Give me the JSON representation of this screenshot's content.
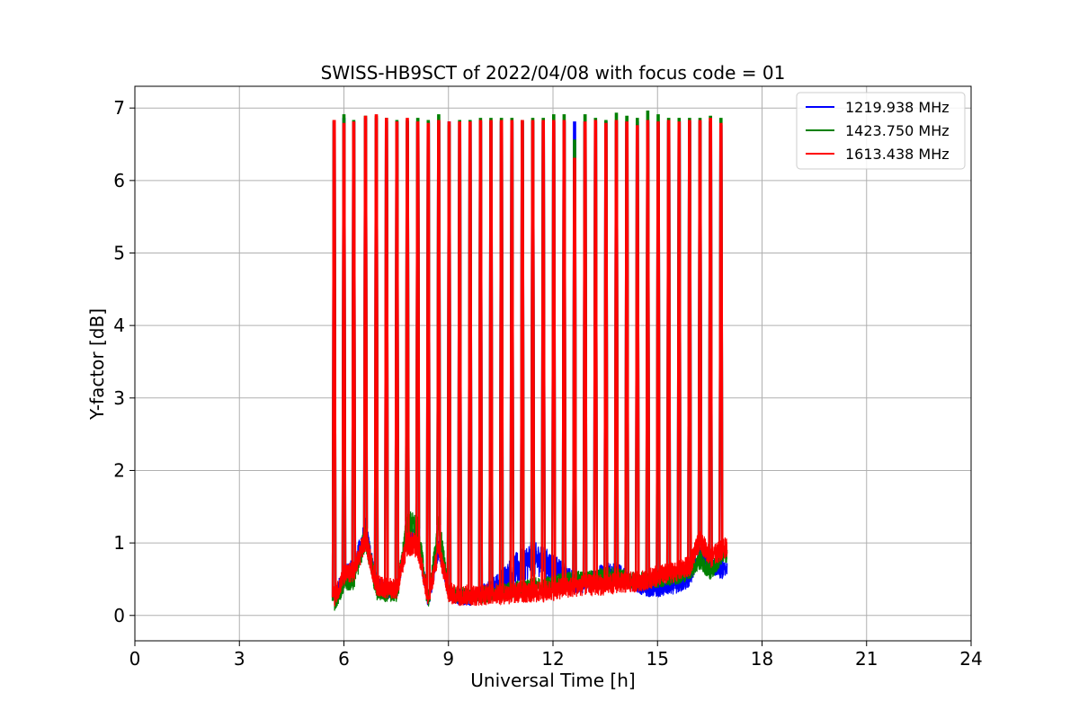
{
  "chart_data": {
    "type": "line",
    "title": "SWISS-HB9SCT of 2022/04/08 with focus code = 01",
    "xlabel": "Universal Time [h]",
    "ylabel": "Y-factor [dB]",
    "xlim": [
      0,
      24
    ],
    "ylim": [
      -0.35,
      7.3
    ],
    "xticks": [
      0,
      3,
      6,
      9,
      12,
      15,
      18,
      21,
      24
    ],
    "yticks": [
      0,
      1,
      2,
      3,
      4,
      5,
      6,
      7
    ],
    "grid": true,
    "legend_position": "top-right",
    "calibration_spike_times_h": [
      5.72,
      6.0,
      6.28,
      6.62,
      6.93,
      7.22,
      7.52,
      7.82,
      8.12,
      8.42,
      8.72,
      9.02,
      9.32,
      9.62,
      9.92,
      10.22,
      10.52,
      10.82,
      11.12,
      11.42,
      11.72,
      12.02,
      12.32,
      12.62,
      12.92,
      13.22,
      13.52,
      13.82,
      14.12,
      14.42,
      14.72,
      15.02,
      15.32,
      15.62,
      15.92,
      16.22,
      16.52,
      16.82
    ],
    "series": [
      {
        "name": "1219.938 MHz",
        "color": "#0000ff",
        "spike_peaks": [
          6.8,
          6.85,
          6.8,
          6.85,
          6.85,
          6.8,
          6.8,
          6.8,
          6.8,
          6.8,
          6.8,
          6.8,
          6.8,
          6.8,
          6.8,
          6.8,
          6.8,
          6.8,
          6.8,
          6.8,
          6.8,
          6.8,
          6.8,
          6.8,
          6.8,
          6.8,
          6.8,
          6.8,
          6.8,
          6.8,
          6.8,
          6.8,
          6.8,
          6.8,
          6.8,
          6.8,
          6.8,
          6.75
        ],
        "baseline": {
          "x": [
            5.72,
            6.0,
            6.28,
            6.62,
            6.93,
            7.22,
            7.52,
            7.82,
            8.12,
            8.42,
            8.72,
            9.02,
            9.32,
            9.62,
            9.92,
            10.22,
            10.52,
            10.82,
            11.12,
            11.42,
            11.72,
            12.02,
            12.32,
            12.62,
            12.92,
            13.22,
            13.52,
            13.82,
            14.12,
            14.42,
            14.72,
            15.02,
            15.32,
            15.62,
            15.92,
            16.22,
            16.52,
            16.82,
            17.0
          ],
          "y": [
            0.25,
            0.55,
            0.65,
            1.2,
            0.45,
            0.35,
            0.35,
            1.15,
            1.0,
            0.2,
            0.95,
            0.3,
            0.25,
            0.25,
            0.3,
            0.35,
            0.45,
            0.6,
            0.7,
            0.78,
            0.75,
            0.65,
            0.55,
            0.45,
            0.45,
            0.5,
            0.6,
            0.6,
            0.5,
            0.4,
            0.35,
            0.35,
            0.38,
            0.42,
            0.5,
            0.85,
            0.7,
            0.6,
            0.65
          ],
          "noise": [
            0.12,
            0.12,
            0.15,
            0.15,
            0.12,
            0.12,
            0.12,
            0.15,
            0.15,
            0.12,
            0.15,
            0.1,
            0.12,
            0.12,
            0.12,
            0.15,
            0.2,
            0.22,
            0.25,
            0.25,
            0.22,
            0.2,
            0.18,
            0.15,
            0.15,
            0.15,
            0.15,
            0.15,
            0.12,
            0.1,
            0.1,
            0.1,
            0.1,
            0.12,
            0.12,
            0.12,
            0.1,
            0.12,
            0.12
          ]
        }
      },
      {
        "name": "1423.750 MHz",
        "color": "#008000",
        "spike_peaks": [
          6.82,
          6.9,
          6.82,
          6.88,
          6.88,
          6.85,
          6.82,
          6.82,
          6.85,
          6.82,
          6.9,
          6.75,
          6.82,
          6.82,
          6.85,
          6.85,
          6.85,
          6.85,
          6.82,
          6.85,
          6.85,
          6.9,
          6.9,
          6.55,
          6.9,
          6.85,
          6.82,
          6.92,
          6.88,
          6.85,
          6.95,
          6.9,
          6.85,
          6.85,
          6.85,
          6.85,
          6.88,
          6.85
        ],
        "baseline": {
          "x": [
            5.72,
            6.0,
            6.28,
            6.62,
            6.93,
            7.22,
            7.52,
            7.82,
            8.12,
            8.42,
            8.72,
            9.02,
            9.32,
            9.62,
            9.92,
            10.22,
            10.52,
            10.82,
            11.12,
            11.42,
            11.72,
            12.02,
            12.32,
            12.62,
            12.92,
            13.22,
            13.52,
            13.82,
            14.12,
            14.42,
            14.72,
            15.02,
            15.32,
            15.62,
            15.92,
            16.22,
            16.52,
            16.82,
            17.0
          ],
          "y": [
            0.2,
            0.45,
            0.5,
            1.1,
            0.35,
            0.3,
            0.3,
            1.3,
            1.2,
            0.2,
            1.25,
            0.3,
            0.28,
            0.28,
            0.28,
            0.3,
            0.32,
            0.35,
            0.38,
            0.4,
            0.42,
            0.45,
            0.48,
            0.5,
            0.5,
            0.52,
            0.55,
            0.55,
            0.5,
            0.48,
            0.48,
            0.5,
            0.52,
            0.55,
            0.6,
            0.75,
            0.6,
            0.8,
            0.85
          ],
          "noise": [
            0.15,
            0.15,
            0.15,
            0.2,
            0.15,
            0.12,
            0.12,
            0.18,
            0.18,
            0.12,
            0.18,
            0.12,
            0.12,
            0.12,
            0.12,
            0.12,
            0.12,
            0.12,
            0.12,
            0.12,
            0.12,
            0.12,
            0.12,
            0.12,
            0.12,
            0.12,
            0.12,
            0.12,
            0.12,
            0.12,
            0.12,
            0.12,
            0.12,
            0.12,
            0.12,
            0.12,
            0.12,
            0.12,
            0.12
          ]
        }
      },
      {
        "name": "1613.438 MHz",
        "color": "#ff0000",
        "spike_peaks": [
          6.82,
          6.78,
          6.8,
          6.88,
          6.9,
          6.85,
          6.8,
          6.85,
          6.8,
          6.78,
          6.82,
          6.8,
          6.8,
          6.8,
          6.82,
          6.82,
          6.82,
          6.82,
          6.82,
          6.82,
          6.82,
          6.82,
          6.82,
          6.3,
          6.8,
          6.82,
          6.78,
          6.82,
          6.8,
          6.75,
          6.82,
          6.8,
          6.82,
          6.8,
          6.82,
          6.82,
          6.85,
          6.78
        ],
        "baseline": {
          "x": [
            5.72,
            6.0,
            6.28,
            6.62,
            6.93,
            7.22,
            7.52,
            7.82,
            8.12,
            8.42,
            8.72,
            9.02,
            9.32,
            9.62,
            9.92,
            10.22,
            10.52,
            10.82,
            11.12,
            11.42,
            11.72,
            12.02,
            12.32,
            12.62,
            12.92,
            13.22,
            13.52,
            13.82,
            14.12,
            14.42,
            14.72,
            15.02,
            15.32,
            15.62,
            15.92,
            16.22,
            16.52,
            16.82,
            17.0
          ],
          "y": [
            0.25,
            0.55,
            0.6,
            1.05,
            0.42,
            0.38,
            0.38,
            1.0,
            0.95,
            0.22,
            0.92,
            0.3,
            0.28,
            0.28,
            0.28,
            0.3,
            0.3,
            0.3,
            0.32,
            0.32,
            0.33,
            0.35,
            0.38,
            0.4,
            0.42,
            0.42,
            0.42,
            0.45,
            0.45,
            0.47,
            0.5,
            0.55,
            0.58,
            0.62,
            0.68,
            1.05,
            0.8,
            0.9,
            0.95
          ],
          "noise": [
            0.15,
            0.15,
            0.15,
            0.18,
            0.15,
            0.15,
            0.15,
            0.18,
            0.18,
            0.12,
            0.18,
            0.15,
            0.15,
            0.15,
            0.15,
            0.15,
            0.15,
            0.15,
            0.15,
            0.15,
            0.15,
            0.15,
            0.15,
            0.15,
            0.15,
            0.15,
            0.15,
            0.15,
            0.15,
            0.15,
            0.15,
            0.15,
            0.15,
            0.15,
            0.15,
            0.15,
            0.15,
            0.15,
            0.15
          ]
        }
      }
    ]
  }
}
